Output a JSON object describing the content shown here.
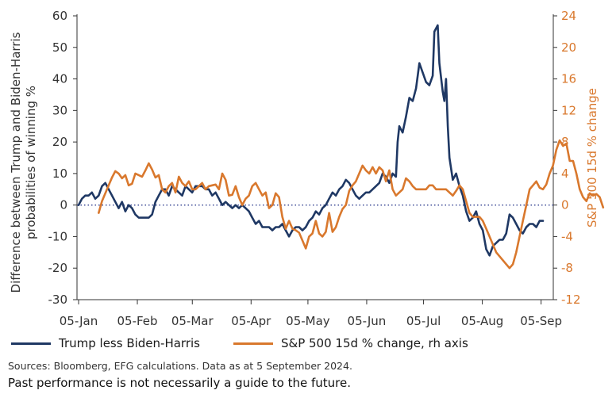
{
  "chart_data": {
    "type": "line",
    "ylabel": "Difference between Trump and Biden-Harris probabilities of winning %",
    "y2label": "S&P 500 15d % change",
    "ylim": [
      -30,
      60
    ],
    "y2lim": [
      -12,
      24
    ],
    "yticks": [
      "60",
      "50",
      "40",
      "30",
      "20",
      "10",
      "0",
      "-10",
      "-20",
      "-30"
    ],
    "y2ticks": [
      "24",
      "20",
      "16",
      "12",
      "8",
      "4",
      "0",
      "-4",
      "-8",
      "-12"
    ],
    "xtick_labels": [
      "05-Jan",
      "05-Feb",
      "05-Mar",
      "05-Apr",
      "05-May",
      "05-Jun",
      "05-Jul",
      "05-Aug",
      "05-Sep"
    ],
    "zero_line": true,
    "series": [
      {
        "name": "Trump less Biden-Harris",
        "axis": "left",
        "color": "#1f3864",
        "points": [
          [
            0,
            0
          ],
          [
            2,
            2
          ],
          [
            4,
            3
          ],
          [
            6,
            3
          ],
          [
            8,
            4
          ],
          [
            10,
            2
          ],
          [
            12,
            3
          ],
          [
            14,
            6
          ],
          [
            16,
            7
          ],
          [
            18,
            5
          ],
          [
            20,
            3
          ],
          [
            22,
            1
          ],
          [
            24,
            -1
          ],
          [
            26,
            1
          ],
          [
            28,
            -2
          ],
          [
            30,
            0
          ],
          [
            32,
            -1
          ],
          [
            34,
            -3
          ],
          [
            36,
            -4
          ],
          [
            38,
            -4
          ],
          [
            40,
            -4
          ],
          [
            42,
            -4
          ],
          [
            44,
            -3
          ],
          [
            46,
            1
          ],
          [
            48,
            3
          ],
          [
            50,
            5
          ],
          [
            52,
            5
          ],
          [
            54,
            3
          ],
          [
            56,
            6
          ],
          [
            58,
            5
          ],
          [
            60,
            4
          ],
          [
            62,
            3
          ],
          [
            64,
            6
          ],
          [
            66,
            5
          ],
          [
            68,
            4
          ],
          [
            70,
            6
          ],
          [
            72,
            6
          ],
          [
            74,
            6
          ],
          [
            76,
            5
          ],
          [
            78,
            5
          ],
          [
            80,
            3
          ],
          [
            82,
            4
          ],
          [
            84,
            2
          ],
          [
            86,
            0
          ],
          [
            88,
            1
          ],
          [
            90,
            0
          ],
          [
            92,
            -1
          ],
          [
            94,
            0
          ],
          [
            96,
            -1
          ],
          [
            98,
            0
          ],
          [
            100,
            -1
          ],
          [
            102,
            -2
          ],
          [
            104,
            -4
          ],
          [
            106,
            -6
          ],
          [
            108,
            -5
          ],
          [
            110,
            -7
          ],
          [
            112,
            -7
          ],
          [
            114,
            -7
          ],
          [
            116,
            -8
          ],
          [
            118,
            -7
          ],
          [
            120,
            -7
          ],
          [
            122,
            -6
          ],
          [
            124,
            -8
          ],
          [
            126,
            -10
          ],
          [
            128,
            -8
          ],
          [
            130,
            -7
          ],
          [
            132,
            -7
          ],
          [
            134,
            -8
          ],
          [
            136,
            -7
          ],
          [
            138,
            -5
          ],
          [
            140,
            -4
          ],
          [
            142,
            -2
          ],
          [
            144,
            -3
          ],
          [
            146,
            -1
          ],
          [
            148,
            0
          ],
          [
            150,
            2
          ],
          [
            152,
            4
          ],
          [
            154,
            3
          ],
          [
            156,
            5
          ],
          [
            158,
            6
          ],
          [
            160,
            8
          ],
          [
            162,
            7
          ],
          [
            164,
            5
          ],
          [
            166,
            3
          ],
          [
            168,
            2
          ],
          [
            170,
            3
          ],
          [
            172,
            4
          ],
          [
            174,
            4
          ],
          [
            176,
            5
          ],
          [
            178,
            6
          ],
          [
            180,
            7
          ],
          [
            182,
            10
          ],
          [
            184,
            9
          ],
          [
            186,
            7
          ],
          [
            188,
            10
          ],
          [
            190,
            9
          ],
          [
            191,
            20
          ],
          [
            192,
            25
          ],
          [
            194,
            23
          ],
          [
            196,
            28
          ],
          [
            198,
            34
          ],
          [
            200,
            33
          ],
          [
            202,
            37
          ],
          [
            204,
            45
          ],
          [
            206,
            42
          ],
          [
            208,
            39
          ],
          [
            210,
            38
          ],
          [
            212,
            41
          ],
          [
            213,
            55
          ],
          [
            215,
            57
          ],
          [
            216,
            45
          ],
          [
            218,
            36
          ],
          [
            219,
            33
          ],
          [
            220,
            40
          ],
          [
            221,
            25
          ],
          [
            222,
            15
          ],
          [
            224,
            8
          ],
          [
            226,
            10
          ],
          [
            228,
            6
          ],
          [
            230,
            3
          ],
          [
            232,
            -2
          ],
          [
            234,
            -5
          ],
          [
            236,
            -4
          ],
          [
            238,
            -2
          ],
          [
            240,
            -6
          ],
          [
            242,
            -8
          ],
          [
            244,
            -14
          ],
          [
            246,
            -16
          ],
          [
            248,
            -13
          ],
          [
            250,
            -12
          ],
          [
            252,
            -11
          ],
          [
            254,
            -11
          ],
          [
            256,
            -9
          ],
          [
            258,
            -3
          ],
          [
            260,
            -4
          ],
          [
            262,
            -6
          ],
          [
            264,
            -8
          ],
          [
            266,
            -9
          ],
          [
            268,
            -7
          ],
          [
            270,
            -6
          ],
          [
            272,
            -6
          ],
          [
            274,
            -7
          ],
          [
            276,
            -5
          ],
          [
            278,
            -5
          ]
        ]
      },
      {
        "name": "S&P 500 15d % change, rh axis",
        "axis": "right",
        "color": "#d9782d",
        "points": [
          [
            12,
            -1
          ],
          [
            14,
            0.5
          ],
          [
            16,
            1.5
          ],
          [
            18,
            2.5
          ],
          [
            20,
            3.5
          ],
          [
            22,
            4.3
          ],
          [
            24,
            4
          ],
          [
            26,
            3.4
          ],
          [
            28,
            3.8
          ],
          [
            30,
            2.5
          ],
          [
            32,
            2.7
          ],
          [
            34,
            4
          ],
          [
            36,
            3.8
          ],
          [
            38,
            3.6
          ],
          [
            40,
            4.4
          ],
          [
            42,
            5.3
          ],
          [
            44,
            4.5
          ],
          [
            46,
            3.5
          ],
          [
            48,
            3.8
          ],
          [
            50,
            2
          ],
          [
            52,
            1.6
          ],
          [
            54,
            2.4
          ],
          [
            56,
            2.8
          ],
          [
            58,
            1.6
          ],
          [
            60,
            3.6
          ],
          [
            62,
            2.8
          ],
          [
            64,
            2.4
          ],
          [
            66,
            3
          ],
          [
            68,
            2
          ],
          [
            70,
            2
          ],
          [
            72,
            2.4
          ],
          [
            74,
            2.8
          ],
          [
            76,
            2
          ],
          [
            78,
            2.4
          ],
          [
            80,
            2.5
          ],
          [
            82,
            2.6
          ],
          [
            84,
            2
          ],
          [
            86,
            4
          ],
          [
            88,
            3.2
          ],
          [
            90,
            1.2
          ],
          [
            92,
            1.3
          ],
          [
            94,
            2.4
          ],
          [
            96,
            1
          ],
          [
            98,
            0
          ],
          [
            100,
            0.8
          ],
          [
            102,
            1.2
          ],
          [
            104,
            2.4
          ],
          [
            106,
            2.8
          ],
          [
            108,
            2
          ],
          [
            110,
            1.2
          ],
          [
            112,
            1.6
          ],
          [
            114,
            -0.4
          ],
          [
            116,
            0
          ],
          [
            118,
            1.5
          ],
          [
            120,
            1
          ],
          [
            122,
            -1.5
          ],
          [
            124,
            -3
          ],
          [
            126,
            -2
          ],
          [
            128,
            -3
          ],
          [
            130,
            -3.2
          ],
          [
            132,
            -3.5
          ],
          [
            134,
            -4.5
          ],
          [
            136,
            -5.5
          ],
          [
            138,
            -4
          ],
          [
            140,
            -3.6
          ],
          [
            142,
            -2
          ],
          [
            144,
            -3.6
          ],
          [
            146,
            -4
          ],
          [
            148,
            -3.4
          ],
          [
            150,
            -1
          ],
          [
            152,
            -3.4
          ],
          [
            154,
            -2.8
          ],
          [
            156,
            -1.5
          ],
          [
            158,
            -0.5
          ],
          [
            160,
            0
          ],
          [
            162,
            1.8
          ],
          [
            164,
            2.5
          ],
          [
            166,
            3
          ],
          [
            168,
            4
          ],
          [
            170,
            5
          ],
          [
            172,
            4.4
          ],
          [
            174,
            4
          ],
          [
            176,
            4.8
          ],
          [
            178,
            4
          ],
          [
            180,
            4.8
          ],
          [
            182,
            4.4
          ],
          [
            184,
            3
          ],
          [
            186,
            4.4
          ],
          [
            188,
            2
          ],
          [
            190,
            1.2
          ],
          [
            192,
            1.6
          ],
          [
            194,
            2
          ],
          [
            196,
            3.4
          ],
          [
            198,
            3
          ],
          [
            200,
            2.4
          ],
          [
            202,
            2
          ],
          [
            204,
            2
          ],
          [
            206,
            2
          ],
          [
            208,
            2
          ],
          [
            210,
            2.5
          ],
          [
            212,
            2.5
          ],
          [
            214,
            2
          ],
          [
            216,
            2
          ],
          [
            218,
            2
          ],
          [
            220,
            2
          ],
          [
            222,
            1.6
          ],
          [
            224,
            1.2
          ],
          [
            226,
            1.8
          ],
          [
            228,
            2.5
          ],
          [
            230,
            2
          ],
          [
            232,
            0.5
          ],
          [
            234,
            -1
          ],
          [
            236,
            -1.5
          ],
          [
            238,
            -1.5
          ],
          [
            240,
            -1.5
          ],
          [
            242,
            -2
          ],
          [
            244,
            -3
          ],
          [
            246,
            -4
          ],
          [
            248,
            -5
          ],
          [
            250,
            -6
          ],
          [
            252,
            -6.5
          ],
          [
            254,
            -7
          ],
          [
            256,
            -7.5
          ],
          [
            258,
            -8
          ],
          [
            260,
            -7.5
          ],
          [
            262,
            -6
          ],
          [
            264,
            -4
          ],
          [
            266,
            -2
          ],
          [
            268,
            0
          ],
          [
            270,
            2
          ],
          [
            272,
            2.5
          ],
          [
            274,
            3
          ],
          [
            276,
            2.2
          ],
          [
            278,
            2
          ],
          [
            280,
            2.6
          ],
          [
            282,
            4
          ],
          [
            284,
            5
          ],
          [
            286,
            7
          ],
          [
            288,
            8.2
          ],
          [
            290,
            7.5
          ],
          [
            292,
            7.8
          ],
          [
            294,
            5.6
          ],
          [
            296,
            5.6
          ],
          [
            298,
            4
          ],
          [
            300,
            2
          ],
          [
            302,
            1
          ],
          [
            304,
            0.5
          ],
          [
            306,
            1.5
          ],
          [
            308,
            1.2
          ],
          [
            310,
            1.4
          ],
          [
            312,
            1
          ],
          [
            314,
            -0.3
          ]
        ]
      }
    ],
    "legend_position": "bottom"
  },
  "legend": [
    {
      "label": "Trump less Biden-Harris",
      "color": "#1f3864"
    },
    {
      "label": "S&P 500 15d % change, rh axis",
      "color": "#d9782d"
    }
  ],
  "footnote": {
    "source": "Sources: Bloomberg, EFG calculations. Data as at 5 September 2024.",
    "disclaimer": "Past performance is not necessarily a guide to the future."
  }
}
